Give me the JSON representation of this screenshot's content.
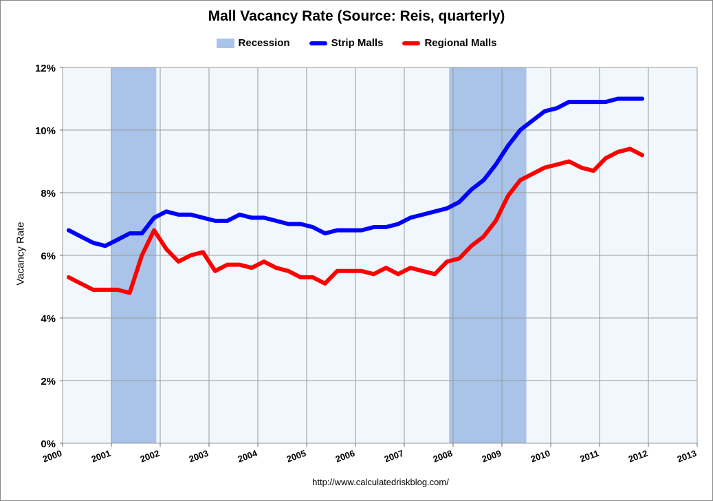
{
  "chart_data": {
    "type": "line",
    "title": "Mall Vacancy Rate (Source: Reis, quarterly)",
    "ylabel": "Vacancy Rate",
    "xlabel": "",
    "source_text": "http://www.calculatedriskblog.com/",
    "ylim": [
      0,
      12
    ],
    "xlim": [
      2000,
      2013
    ],
    "y_ticks": [
      0,
      2,
      4,
      6,
      8,
      10,
      12
    ],
    "y_tick_labels": [
      "0%",
      "2%",
      "4%",
      "6%",
      "8%",
      "10%",
      "12%"
    ],
    "x_ticks": [
      2000,
      2001,
      2002,
      2003,
      2004,
      2005,
      2006,
      2007,
      2008,
      2009,
      2010,
      2011,
      2012,
      2013
    ],
    "x_tick_labels": [
      "2000",
      "2001",
      "2002",
      "2003",
      "2004",
      "2005",
      "2006",
      "2007",
      "2008",
      "2009",
      "2010",
      "2011",
      "2012",
      "2013"
    ],
    "legend": {
      "recession": "Recession",
      "strip": "Strip Malls",
      "regional": "Regional Malls"
    },
    "recessions": [
      {
        "start": 2001.0,
        "end": 2001.92
      },
      {
        "start": 2007.92,
        "end": 2009.5
      }
    ],
    "x": [
      2000.125,
      2000.375,
      2000.625,
      2000.875,
      2001.125,
      2001.375,
      2001.625,
      2001.875,
      2002.125,
      2002.375,
      2002.625,
      2002.875,
      2003.125,
      2003.375,
      2003.625,
      2003.875,
      2004.125,
      2004.375,
      2004.625,
      2004.875,
      2005.125,
      2005.375,
      2005.625,
      2005.875,
      2006.125,
      2006.375,
      2006.625,
      2006.875,
      2007.125,
      2007.375,
      2007.625,
      2007.875,
      2008.125,
      2008.375,
      2008.625,
      2008.875,
      2009.125,
      2009.375,
      2009.625,
      2009.875,
      2010.125,
      2010.375,
      2010.625,
      2010.875,
      2011.125,
      2011.375,
      2011.625,
      2011.875
    ],
    "series": [
      {
        "name": "Strip Malls",
        "color": "#0000ff",
        "values": [
          6.8,
          6.6,
          6.4,
          6.3,
          6.5,
          6.7,
          6.7,
          7.2,
          7.4,
          7.3,
          7.3,
          7.2,
          7.1,
          7.1,
          7.3,
          7.2,
          7.2,
          7.1,
          7.0,
          7.0,
          6.9,
          6.7,
          6.8,
          6.8,
          6.8,
          6.9,
          6.9,
          7.0,
          7.2,
          7.3,
          7.4,
          7.5,
          7.7,
          8.1,
          8.4,
          8.9,
          9.5,
          10.0,
          10.3,
          10.6,
          10.7,
          10.9,
          10.9,
          10.9,
          10.9,
          11.0,
          11.0,
          11.0
        ]
      },
      {
        "name": "Regional Malls",
        "color": "#ff0000",
        "values": [
          5.3,
          5.1,
          4.9,
          4.9,
          4.9,
          4.8,
          6.0,
          6.8,
          6.2,
          5.8,
          6.0,
          6.1,
          5.5,
          5.7,
          5.7,
          5.6,
          5.8,
          5.6,
          5.5,
          5.3,
          5.3,
          5.1,
          5.5,
          5.5,
          5.5,
          5.4,
          5.6,
          5.4,
          5.6,
          5.5,
          5.4,
          5.8,
          5.9,
          6.3,
          6.6,
          7.1,
          7.9,
          8.4,
          8.6,
          8.8,
          8.9,
          9.0,
          8.8,
          8.7,
          9.1,
          9.3,
          9.4,
          9.2
        ]
      }
    ],
    "colors": {
      "recession": "#a9c4e8",
      "plot_background": "#f0f7fd",
      "gridline": "#9a9a9a"
    }
  }
}
